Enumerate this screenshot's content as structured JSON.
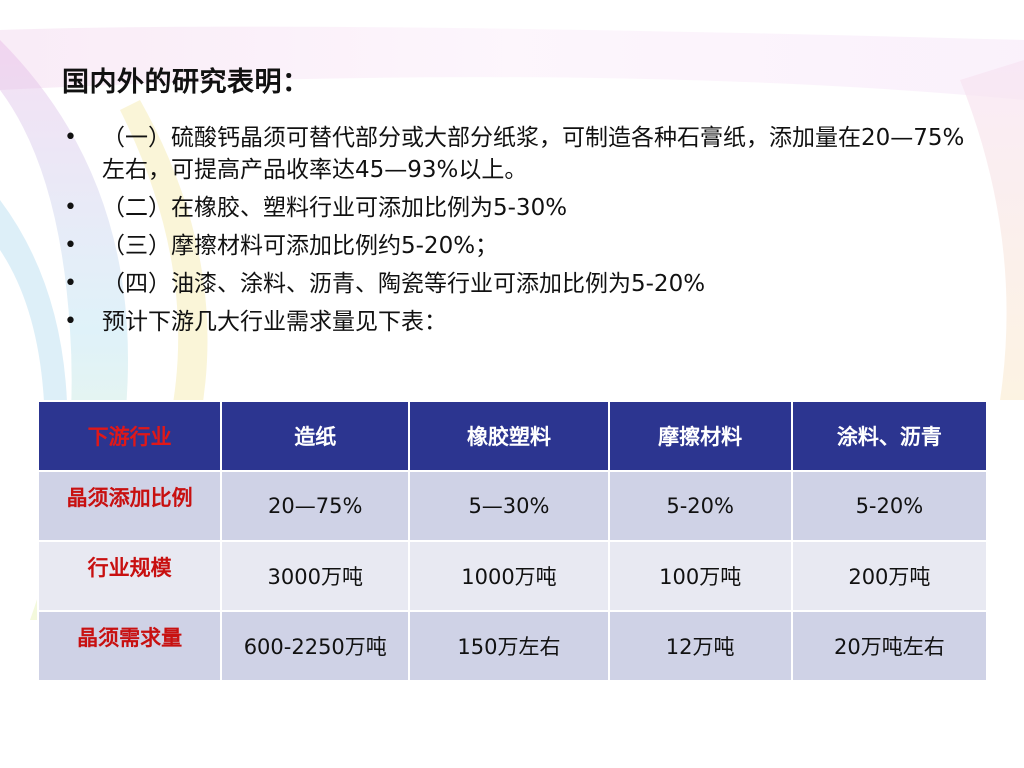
{
  "slide": {
    "title": "国内外的研究表明：",
    "bullets": [
      "（一）硫酸钙晶须可替代部分或大部分纸浆，可制造各种石膏纸，添加量在20—75%左右，可提高产品收率达45—93%以上。",
      "（二）在橡胶、塑料行业可添加比例为5-30%",
      "（三）摩擦材料可添加比例约5-20%；",
      "（四）油漆、涂料、沥青、陶瓷等行业可添加比例为5-20%",
      "预计下游几大行业需求量见下表："
    ],
    "bullet_symbol": "•"
  },
  "table": {
    "headers": [
      "下游行业",
      "造纸",
      "橡胶塑料",
      "摩擦材料",
      "涂料、沥青"
    ],
    "rows": [
      {
        "label": "晶须添加比例",
        "values": [
          "20—75%",
          "5—30%",
          "5-20%",
          "5-20%"
        ]
      },
      {
        "label": "行业规模",
        "values": [
          "3000万吨",
          "1000万吨",
          "100万吨",
          "200万吨"
        ]
      },
      {
        "label": "晶须需求量",
        "values": [
          "600-2250万吨",
          "150万左右",
          "12万吨",
          "20万吨左右"
        ]
      }
    ]
  },
  "colors": {
    "header_bg": "#2c3590",
    "header_text": "#ffffff",
    "first_header_text": "#e01818",
    "row_label_text": "#c81010",
    "row_bg_dark": "#cfd2e6",
    "row_bg_light": "#e8e9f2"
  }
}
